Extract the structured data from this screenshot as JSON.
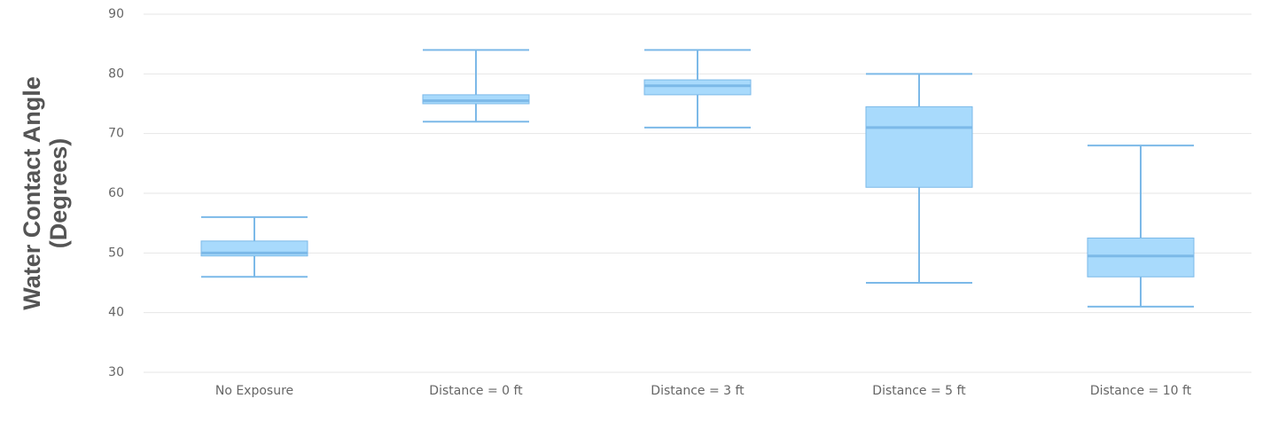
{
  "chart_data": {
    "type": "box",
    "y_label": [
      "Water Contact Angle",
      "(Degrees)"
    ],
    "categories": [
      "No Exposure",
      "Distance = 0 ft",
      "Distance = 3 ft",
      "Distance = 5 ft",
      "Distance = 10 ft"
    ],
    "min": [
      46,
      72,
      71,
      45,
      41
    ],
    "q1": [
      49.5,
      75,
      76.5,
      61,
      46
    ],
    "median": [
      50,
      75.5,
      78,
      71,
      49.5
    ],
    "q3": [
      52,
      76.5,
      79,
      74.5,
      52.5
    ],
    "max": [
      56,
      84,
      84,
      80,
      68
    ],
    "color": "#a8dafc",
    "line_color": "#7cb9e8",
    "ylim": [
      30,
      90
    ],
    "yticks": [
      30,
      40,
      50,
      60,
      70,
      80,
      90
    ],
    "grid": true
  }
}
